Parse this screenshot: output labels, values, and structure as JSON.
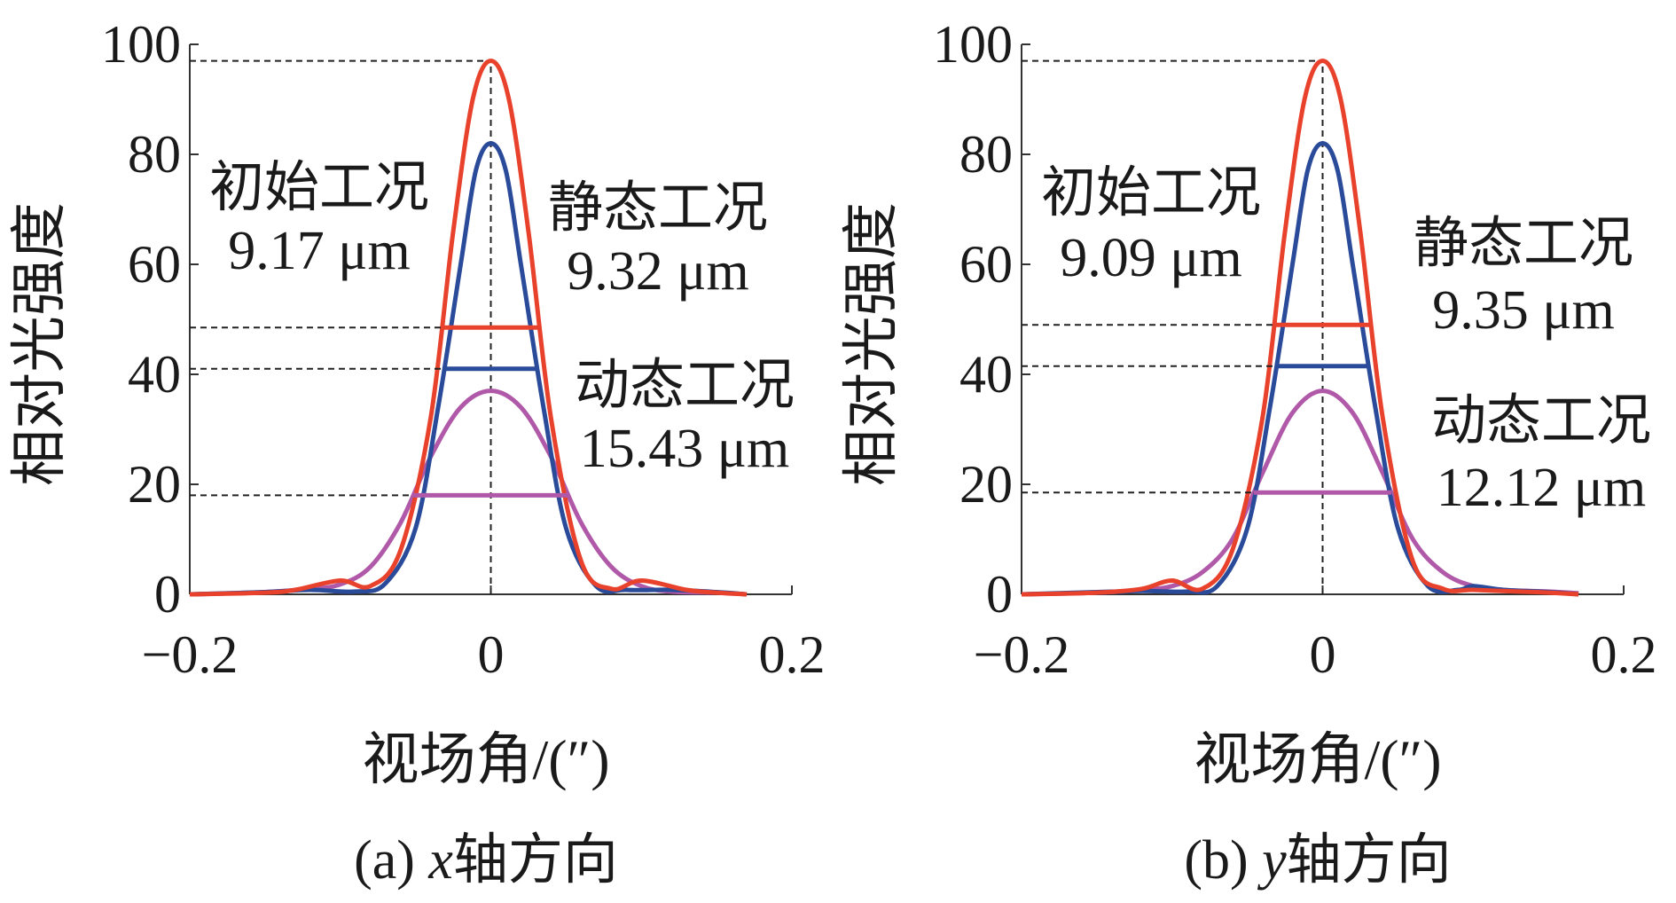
{
  "chart_data": [
    {
      "type": "line",
      "panel": "a",
      "caption_prefix": "(a) ",
      "caption_axis": "x",
      "caption_suffix": "轴方向",
      "xlabel": "视场角/(″)",
      "ylabel": "相对光强度",
      "xlim": [
        -0.2,
        0.2
      ],
      "ylim": [
        0,
        100
      ],
      "xticks": [
        -0.2,
        0,
        0.2
      ],
      "xtick_labels": [
        "−0.2",
        "0",
        "0.2"
      ],
      "yticks": [
        0,
        20,
        40,
        60,
        80,
        100
      ],
      "ytick_labels": [
        "0",
        "20",
        "40",
        "60",
        "80",
        "100"
      ],
      "grid": false,
      "series": [
        {
          "label": "静态工况",
          "color": "#e8412c",
          "peak": 97,
          "fwhm_level": 48.5,
          "x": [
            -0.2,
            -0.15,
            -0.13,
            -0.1,
            -0.08,
            -0.06,
            -0.04,
            -0.025,
            -0.012,
            0,
            0.012,
            0.025,
            0.04,
            0.06,
            0.08,
            0.1,
            0.13,
            0.15,
            0.17
          ],
          "y": [
            0,
            0.3,
            0.8,
            2.5,
            1.5,
            8,
            32,
            66,
            90,
            97,
            90,
            66,
            32,
            6,
            1,
            2.5,
            0.8,
            0.3,
            0
          ]
        },
        {
          "label": "初始工况",
          "color": "#2a4a9a",
          "peak": 82,
          "fwhm_level": 41,
          "x": [
            -0.2,
            -0.15,
            -0.12,
            -0.09,
            -0.07,
            -0.05,
            -0.035,
            -0.02,
            -0.01,
            0,
            0.01,
            0.02,
            0.035,
            0.05,
            0.07,
            0.09,
            0.12,
            0.15,
            0.17
          ],
          "y": [
            0,
            0.4,
            0.8,
            0.5,
            2,
            12,
            34,
            60,
            77,
            82,
            77,
            60,
            34,
            12,
            1.5,
            0.8,
            0.8,
            0.4,
            0
          ]
        },
        {
          "label": "动态工况",
          "color": "#b059a8",
          "peak": 37,
          "fwhm_level": 18,
          "x": [
            -0.2,
            -0.15,
            -0.12,
            -0.1,
            -0.08,
            -0.06,
            -0.04,
            -0.02,
            0,
            0.02,
            0.04,
            0.06,
            0.08,
            0.1,
            0.12,
            0.15,
            0.17
          ],
          "y": [
            0,
            0.4,
            1,
            1.8,
            5,
            13,
            25,
            34,
            37,
            34,
            25,
            13,
            5,
            1.5,
            0.5,
            0.3,
            0
          ]
        }
      ],
      "annotations": [
        {
          "text": "初始工况",
          "value": "9.17 μm"
        },
        {
          "text": "静态工况",
          "value": "9.32 μm"
        },
        {
          "text": "动态工况",
          "value": "15.43 μm"
        }
      ]
    },
    {
      "type": "line",
      "panel": "b",
      "caption_prefix": "(b) ",
      "caption_axis": "y",
      "caption_suffix": "轴方向",
      "xlabel": "视场角/(″)",
      "ylabel": "相对光强度",
      "xlim": [
        -0.2,
        0.2
      ],
      "ylim": [
        0,
        100
      ],
      "xticks": [
        -0.2,
        0,
        0.2
      ],
      "xtick_labels": [
        "−0.2",
        "0",
        "0.2"
      ],
      "yticks": [
        0,
        20,
        40,
        60,
        80,
        100
      ],
      "ytick_labels": [
        "0",
        "20",
        "40",
        "60",
        "80",
        "100"
      ],
      "grid": false,
      "series": [
        {
          "label": "静态工况",
          "color": "#e8412c",
          "peak": 97,
          "fwhm_level": 49,
          "x": [
            -0.2,
            -0.15,
            -0.12,
            -0.1,
            -0.08,
            -0.06,
            -0.04,
            -0.025,
            -0.012,
            0,
            0.012,
            0.025,
            0.04,
            0.06,
            0.08,
            0.1,
            0.13,
            0.15,
            0.17
          ],
          "y": [
            0,
            0.3,
            1,
            2.5,
            1,
            8,
            32,
            66,
            90,
            97,
            90,
            66,
            32,
            6,
            1,
            0.8,
            0.5,
            0.3,
            0
          ]
        },
        {
          "label": "初始工况",
          "color": "#2a4a9a",
          "peak": 82,
          "fwhm_level": 41.5,
          "x": [
            -0.2,
            -0.15,
            -0.12,
            -0.09,
            -0.07,
            -0.05,
            -0.035,
            -0.02,
            -0.01,
            0,
            0.01,
            0.02,
            0.035,
            0.05,
            0.07,
            0.09,
            0.1,
            0.12,
            0.15,
            0.17
          ],
          "y": [
            0,
            0.4,
            0.6,
            0.5,
            1.5,
            12,
            34,
            60,
            77,
            82,
            77,
            60,
            34,
            12,
            1.5,
            0.8,
            1.5,
            0.8,
            0.4,
            0
          ]
        },
        {
          "label": "动态工况",
          "color": "#b059a8",
          "peak": 37,
          "fwhm_level": 18.5,
          "x": [
            -0.2,
            -0.15,
            -0.12,
            -0.1,
            -0.08,
            -0.06,
            -0.04,
            -0.02,
            0,
            0.02,
            0.04,
            0.06,
            0.08,
            0.1,
            0.12,
            0.15,
            0.17
          ],
          "y": [
            0,
            0.3,
            0.8,
            1.5,
            4,
            10,
            22,
            33,
            37,
            33,
            22,
            10,
            4,
            1.5,
            0.8,
            0.5,
            0.2
          ]
        }
      ],
      "annotations": [
        {
          "text": "初始工况",
          "value": "9.09 μm"
        },
        {
          "text": "静态工况",
          "value": "9.35 μm"
        },
        {
          "text": "动态工况",
          "value": "12.12 μm"
        }
      ]
    }
  ]
}
